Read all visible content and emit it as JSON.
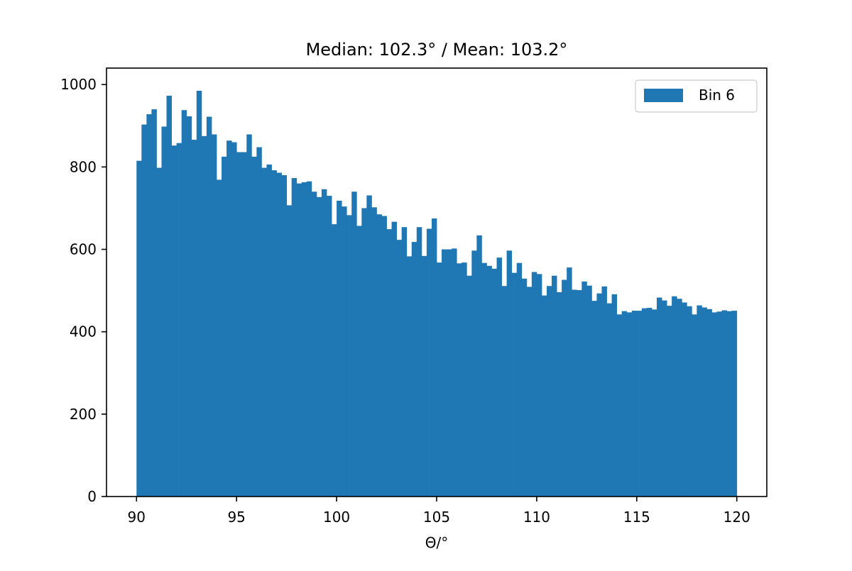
{
  "chart_data": {
    "type": "bar",
    "title": "Median: 102.3° / Mean: 103.2°",
    "xlabel": "Θ/°",
    "ylabel": "",
    "xlim": [
      88.5,
      121.5
    ],
    "ylim": [
      0,
      1040
    ],
    "bin_start": 90,
    "bin_width": 0.25,
    "x_ticks": [
      90,
      95,
      100,
      105,
      110,
      115,
      120
    ],
    "y_ticks": [
      0,
      200,
      400,
      600,
      800,
      1000
    ],
    "grid": false,
    "legend_position": "top-right",
    "series": [
      {
        "name": "Bin 6",
        "color": "#1f77b4",
        "values": [
          815,
          903,
          928,
          940,
          798,
          898,
          973,
          852,
          858,
          938,
          923,
          866,
          985,
          875,
          922,
          879,
          769,
          825,
          864,
          860,
          836,
          836,
          879,
          825,
          848,
          798,
          806,
          792,
          786,
          780,
          707,
          773,
          760,
          763,
          765,
          740,
          727,
          746,
          730,
          661,
          718,
          704,
          683,
          740,
          657,
          700,
          731,
          702,
          685,
          681,
          649,
          667,
          623,
          654,
          583,
          618,
          654,
          584,
          650,
          675,
          568,
          600,
          600,
          602,
          566,
          568,
          536,
          597,
          634,
          567,
          560,
          553,
          580,
          511,
          597,
          543,
          567,
          529,
          509,
          545,
          540,
          488,
          511,
          536,
          496,
          526,
          556,
          502,
          501,
          522,
          512,
          475,
          493,
          510,
          469,
          491,
          442,
          450,
          447,
          451,
          451,
          457,
          458,
          454,
          483,
          476,
          463,
          486,
          480,
          471,
          462,
          442,
          464,
          459,
          455,
          447,
          449,
          452,
          450,
          451
        ]
      }
    ]
  }
}
